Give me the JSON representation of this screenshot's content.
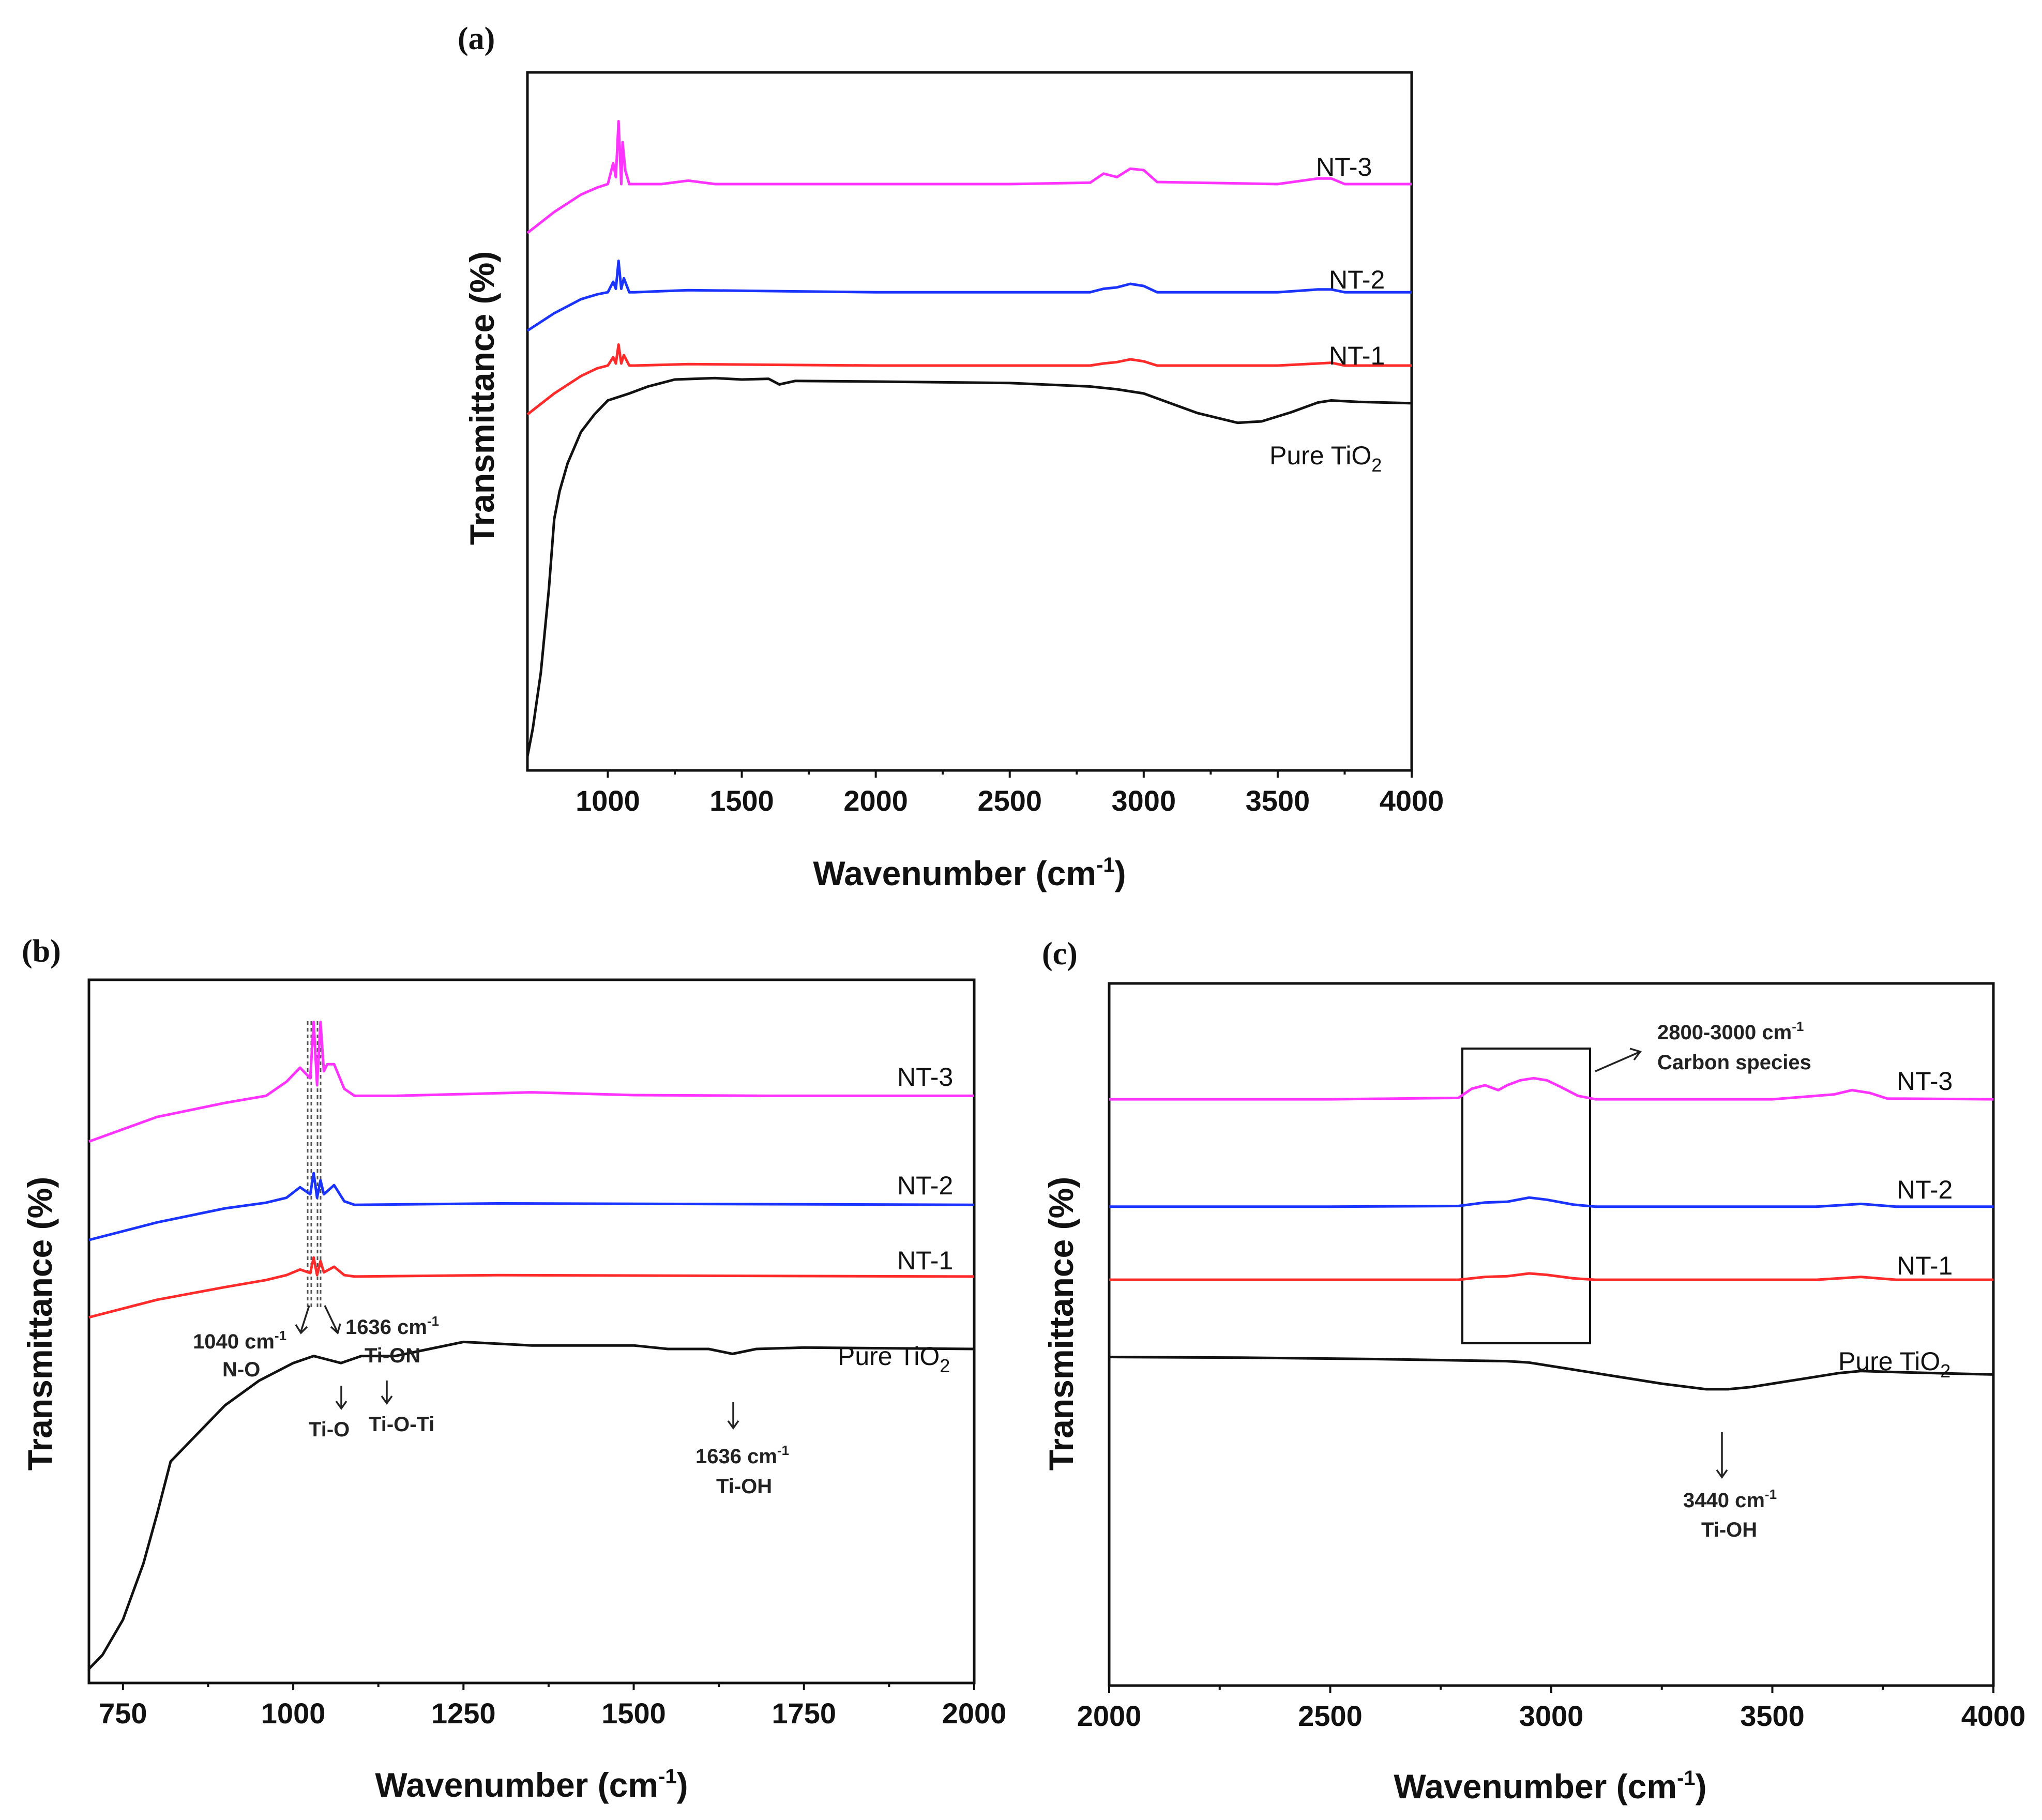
{
  "chart_data": [
    {
      "panel": "(a)",
      "type": "line",
      "xlabel": "Wavenumber (cm",
      "xlabel_sup": "-1",
      "xlabel_end": ")",
      "ylabel": "Transmittance (%)",
      "xlim": [
        700,
        4000
      ],
      "ylim": [
        0,
        100
      ],
      "xticks": [
        1000,
        1500,
        2000,
        2500,
        3000,
        3500,
        4000
      ],
      "tick_labels": [
        "1000",
        "1500",
        "2000",
        "2500",
        "3000",
        "3500",
        "4000"
      ],
      "series": [
        {
          "name": "NT-3",
          "label": "NT-3",
          "color": "#ff33ff",
          "x": [
            700,
            800,
            900,
            960,
            1000,
            1020,
            1030,
            1040,
            1050,
            1055,
            1065,
            1080,
            1100,
            1200,
            1300,
            1400,
            1600,
            2000,
            2500,
            2800,
            2850,
            2900,
            2950,
            3000,
            3050,
            3500,
            3650,
            3700,
            3750,
            4000
          ],
          "y": [
            77,
            80,
            82.5,
            83.5,
            84,
            87,
            85,
            93,
            84,
            90,
            86,
            84,
            84,
            84,
            84.5,
            84,
            84,
            84,
            84,
            84.2,
            85.5,
            85,
            86.2,
            86,
            84.3,
            84,
            84.8,
            84.8,
            84,
            84
          ]
        },
        {
          "name": "NT-2",
          "label": "NT-2",
          "color": "#1a33ff",
          "x": [
            700,
            800,
            900,
            960,
            1000,
            1020,
            1030,
            1040,
            1050,
            1060,
            1080,
            1100,
            1300,
            2000,
            2800,
            2850,
            2900,
            2950,
            3000,
            3050,
            3500,
            3650,
            3700,
            3750,
            4000
          ],
          "y": [
            63,
            65.5,
            67.5,
            68.2,
            68.5,
            70,
            69,
            73,
            69,
            70.5,
            68.5,
            68.5,
            68.8,
            68.5,
            68.5,
            69,
            69.2,
            69.7,
            69.4,
            68.5,
            68.5,
            68.9,
            68.9,
            68.5,
            68.5
          ]
        },
        {
          "name": "NT-1",
          "label": "NT-1",
          "color": "#ff2a2a",
          "x": [
            700,
            800,
            900,
            960,
            1000,
            1020,
            1030,
            1040,
            1050,
            1060,
            1080,
            1100,
            1300,
            2000,
            2800,
            2850,
            2900,
            2950,
            3000,
            3050,
            3500,
            3650,
            3700,
            3750,
            4000
          ],
          "y": [
            51,
            54,
            56.5,
            57.6,
            58,
            59.2,
            58.3,
            61,
            58.3,
            59.5,
            58,
            58,
            58.2,
            58,
            58,
            58.3,
            58.5,
            58.9,
            58.6,
            58,
            58,
            58.3,
            58.4,
            58,
            58
          ]
        },
        {
          "name": "Pure TiO2",
          "label": "Pure TiO",
          "label_sub": "2",
          "color": "#111111",
          "x": [
            700,
            720,
            750,
            780,
            800,
            820,
            850,
            900,
            950,
            1000,
            1040,
            1080,
            1150,
            1250,
            1400,
            1500,
            1600,
            1640,
            1700,
            2000,
            2500,
            2800,
            2900,
            3000,
            3200,
            3350,
            3440,
            3550,
            3650,
            3700,
            3800,
            4000
          ],
          "y": [
            2,
            6,
            14,
            26,
            36,
            40,
            44,
            48.5,
            51,
            53,
            53.5,
            54,
            55,
            56,
            56.2,
            56,
            56.1,
            55.3,
            55.8,
            55.7,
            55.5,
            55,
            54.6,
            54,
            51.2,
            49.8,
            50,
            51.3,
            52.7,
            53,
            52.8,
            52.6
          ]
        }
      ]
    },
    {
      "panel": "(b)",
      "type": "line",
      "xlabel": "Wavenumber (cm",
      "xlabel_sup": "-1",
      "xlabel_end": ")",
      "ylabel": "Transmittance (%)",
      "xlim": [
        700,
        2000
      ],
      "ylim": [
        0,
        100
      ],
      "xticks": [
        750,
        1000,
        1250,
        1500,
        1750,
        2000
      ],
      "tick_labels": [
        "750",
        "1000",
        "1250",
        "1500",
        "1750",
        "2000"
      ],
      "series": [
        {
          "name": "NT-3",
          "label": "NT-3",
          "color": "#ff33ff",
          "x": [
            700,
            800,
            900,
            960,
            990,
            1010,
            1025,
            1030,
            1035,
            1040,
            1045,
            1050,
            1060,
            1075,
            1090,
            1150,
            1350,
            1500,
            1700,
            2000
          ],
          "y": [
            77,
            80.5,
            82.5,
            83.5,
            85.5,
            87.5,
            86,
            94,
            85,
            94,
            87,
            88,
            88,
            84.5,
            83.5,
            83.5,
            84,
            83.6,
            83.5,
            83.5
          ]
        },
        {
          "name": "NT-2",
          "label": "NT-2",
          "color": "#1a33ff",
          "x": [
            700,
            800,
            900,
            960,
            990,
            1010,
            1025,
            1030,
            1035,
            1040,
            1045,
            1060,
            1075,
            1090,
            1300,
            2000
          ],
          "y": [
            63,
            65.5,
            67.5,
            68.3,
            69,
            70.5,
            69.5,
            72.5,
            69,
            71.5,
            69.5,
            70.8,
            68.5,
            68,
            68.2,
            68
          ]
        },
        {
          "name": "NT-1",
          "label": "NT-1",
          "color": "#ff2a2a",
          "x": [
            700,
            800,
            900,
            960,
            990,
            1010,
            1025,
            1030,
            1035,
            1040,
            1045,
            1060,
            1075,
            1090,
            1300,
            2000
          ],
          "y": [
            52,
            54.5,
            56.3,
            57.3,
            58,
            58.8,
            58.3,
            60.5,
            58,
            60,
            58.4,
            59.2,
            58,
            57.8,
            58,
            57.8
          ]
        },
        {
          "name": "Pure TiO2",
          "label": "Pure TiO",
          "label_sub": "2",
          "color": "#111111",
          "x": [
            700,
            720,
            750,
            780,
            800,
            820,
            850,
            900,
            950,
            1000,
            1030,
            1070,
            1100,
            1150,
            1200,
            1250,
            1350,
            1500,
            1550,
            1610,
            1645,
            1680,
            1750,
            2000
          ],
          "y": [
            2,
            4,
            9,
            17,
            24,
            31.5,
            34.5,
            39.5,
            43,
            45.5,
            46.5,
            45.5,
            46.5,
            46.5,
            47.5,
            48.5,
            48,
            48,
            47.5,
            47.5,
            46.8,
            47.5,
            47.7,
            47.5
          ]
        }
      ],
      "annotations": [
        {
          "text": "1040 cm",
          "sup": "-1",
          "line2": "N-O"
        },
        {
          "text": "1636 cm",
          "sup": "-1",
          "line2": "Ti-ON"
        },
        {
          "text": "Ti-O"
        },
        {
          "text": "Ti-O-Ti"
        },
        {
          "text": "1636 cm",
          "sup": "-1",
          "line2": "Ti-OH"
        }
      ]
    },
    {
      "panel": "(c)",
      "type": "line",
      "xlabel": "Wavenumber (cm",
      "xlabel_sup": "-1",
      "xlabel_end": ")",
      "ylabel": "Transmittance (%)",
      "xlim": [
        2000,
        4000
      ],
      "ylim": [
        0,
        100
      ],
      "xticks": [
        2000,
        2500,
        3000,
        3500,
        4000
      ],
      "tick_labels": [
        "2000",
        "2500",
        "3000",
        "3500",
        "4000"
      ],
      "series": [
        {
          "name": "NT-3",
          "label": "NT-3",
          "color": "#ff33ff",
          "x": [
            2000,
            2500,
            2790,
            2820,
            2850,
            2880,
            2900,
            2930,
            2960,
            2990,
            3020,
            3060,
            3100,
            3500,
            3640,
            3680,
            3720,
            3760,
            4000
          ],
          "y": [
            83.5,
            83.5,
            83.7,
            85,
            85.5,
            84.8,
            85.5,
            86.2,
            86.5,
            86.2,
            85.3,
            84,
            83.5,
            83.5,
            84.2,
            84.8,
            84.4,
            83.6,
            83.5
          ]
        },
        {
          "name": "NT-2",
          "label": "NT-2",
          "color": "#1a33ff",
          "x": [
            2000,
            2500,
            2790,
            2850,
            2900,
            2950,
            2990,
            3050,
            3100,
            3600,
            3700,
            3780,
            4000
          ],
          "y": [
            68.2,
            68.2,
            68.3,
            68.8,
            68.9,
            69.5,
            69.2,
            68.5,
            68.2,
            68.2,
            68.6,
            68.2,
            68.2
          ]
        },
        {
          "name": "NT-1",
          "label": "NT-1",
          "color": "#ff2a2a",
          "x": [
            2000,
            2500,
            2790,
            2850,
            2900,
            2950,
            2990,
            3050,
            3100,
            3600,
            3700,
            3780,
            4000
          ],
          "y": [
            57.8,
            57.8,
            57.8,
            58.2,
            58.3,
            58.7,
            58.5,
            58,
            57.8,
            57.8,
            58.2,
            57.8,
            57.8
          ]
        },
        {
          "name": "Pure TiO2",
          "label": "Pure TiO",
          "label_sub": "2",
          "color": "#111111",
          "x": [
            2000,
            2300,
            2600,
            2800,
            2900,
            2950,
            3050,
            3150,
            3250,
            3350,
            3400,
            3450,
            3550,
            3650,
            3700,
            3800,
            4000
          ],
          "y": [
            46.8,
            46.7,
            46.5,
            46.3,
            46.2,
            46,
            45,
            44,
            43,
            42.2,
            42.2,
            42.5,
            43.5,
            44.5,
            44.8,
            44.6,
            44.3
          ]
        }
      ],
      "annotations": [
        {
          "text": "2800-3000 cm",
          "sup": "-1",
          "line2": "Carbon species"
        },
        {
          "text": "3440 cm",
          "sup": "-1",
          "line2": "Ti-OH"
        }
      ]
    }
  ]
}
